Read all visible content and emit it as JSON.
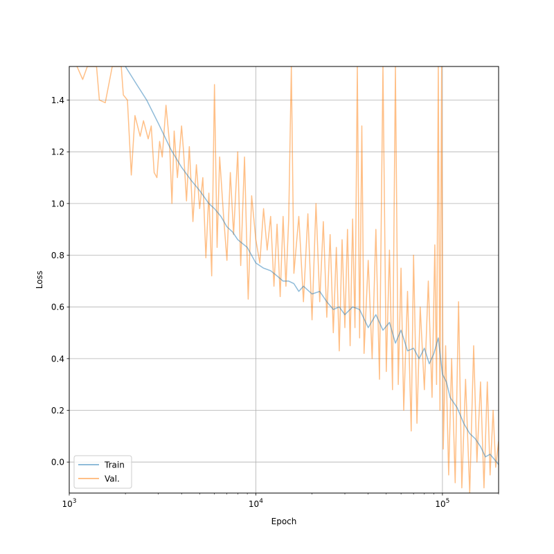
{
  "chart_data": {
    "type": "line",
    "xlabel": "Epoch",
    "ylabel": "Loss",
    "xscale": "log",
    "xlim": [
      1000,
      200000
    ],
    "ylim": [
      -0.12,
      1.53
    ],
    "grid": true,
    "legend_position": "lower-left",
    "x_ticks": [
      {
        "value": 1000,
        "base": "10",
        "exp": "3"
      },
      {
        "value": 10000,
        "base": "10",
        "exp": "4"
      },
      {
        "value": 100000,
        "base": "10",
        "exp": "5"
      }
    ],
    "y_ticks": [
      "0.0",
      "0.2",
      "0.4",
      "0.6",
      "0.8",
      "1.0",
      "1.2",
      "1.4"
    ],
    "series": [
      {
        "name": "Train",
        "color": "#1f77b4",
        "points": [
          [
            2000,
            1.53
          ],
          [
            2300,
            1.46
          ],
          [
            2600,
            1.4
          ],
          [
            3000,
            1.31
          ],
          [
            3500,
            1.21
          ],
          [
            4000,
            1.14
          ],
          [
            4500,
            1.09
          ],
          [
            5000,
            1.05
          ],
          [
            5600,
            1.0
          ],
          [
            6000,
            0.98
          ],
          [
            6500,
            0.95
          ],
          [
            7000,
            0.91
          ],
          [
            7500,
            0.89
          ],
          [
            8000,
            0.86
          ],
          [
            9000,
            0.83
          ],
          [
            10000,
            0.77
          ],
          [
            11000,
            0.75
          ],
          [
            12000,
            0.74
          ],
          [
            13000,
            0.72
          ],
          [
            14000,
            0.7
          ],
          [
            15000,
            0.7
          ],
          [
            16000,
            0.69
          ],
          [
            17000,
            0.66
          ],
          [
            18000,
            0.68
          ],
          [
            20000,
            0.65
          ],
          [
            22000,
            0.66
          ],
          [
            24000,
            0.62
          ],
          [
            26000,
            0.59
          ],
          [
            28000,
            0.6
          ],
          [
            30000,
            0.57
          ],
          [
            33000,
            0.6
          ],
          [
            36000,
            0.59
          ],
          [
            40000,
            0.52
          ],
          [
            44000,
            0.57
          ],
          [
            48000,
            0.51
          ],
          [
            52000,
            0.54
          ],
          [
            56000,
            0.46
          ],
          [
            60000,
            0.51
          ],
          [
            65000,
            0.43
          ],
          [
            70000,
            0.44
          ],
          [
            75000,
            0.4
          ],
          [
            80000,
            0.44
          ],
          [
            85000,
            0.38
          ],
          [
            90000,
            0.42
          ],
          [
            95000,
            0.48
          ],
          [
            100000,
            0.34
          ],
          [
            105000,
            0.31
          ],
          [
            110000,
            0.25
          ],
          [
            120000,
            0.21
          ],
          [
            130000,
            0.15
          ],
          [
            140000,
            0.11
          ],
          [
            150000,
            0.09
          ],
          [
            160000,
            0.06
          ],
          [
            170000,
            0.02
          ],
          [
            180000,
            0.03
          ],
          [
            190000,
            0.01
          ],
          [
            200000,
            -0.01
          ]
        ]
      },
      {
        "name": "Val.",
        "color": "#ff7f0e",
        "points": [
          [
            1100,
            1.53
          ],
          [
            1180,
            1.48
          ],
          [
            1250,
            1.53
          ],
          [
            1400,
            1.53
          ],
          [
            1450,
            1.4
          ],
          [
            1560,
            1.39
          ],
          [
            1700,
            1.53
          ],
          [
            1800,
            1.53
          ],
          [
            1900,
            1.53
          ],
          [
            1950,
            1.42
          ],
          [
            2050,
            1.4
          ],
          [
            2150,
            1.11
          ],
          [
            2250,
            1.34
          ],
          [
            2400,
            1.26
          ],
          [
            2500,
            1.32
          ],
          [
            2650,
            1.25
          ],
          [
            2750,
            1.3
          ],
          [
            2850,
            1.12
          ],
          [
            2950,
            1.1
          ],
          [
            3050,
            1.24
          ],
          [
            3150,
            1.18
          ],
          [
            3300,
            1.38
          ],
          [
            3450,
            1.23
          ],
          [
            3550,
            1.0
          ],
          [
            3650,
            1.28
          ],
          [
            3800,
            1.1
          ],
          [
            4000,
            1.3
          ],
          [
            4100,
            1.2
          ],
          [
            4250,
            1.01
          ],
          [
            4400,
            1.22
          ],
          [
            4600,
            0.93
          ],
          [
            4800,
            1.15
          ],
          [
            5000,
            0.98
          ],
          [
            5200,
            1.1
          ],
          [
            5400,
            0.79
          ],
          [
            5600,
            1.04
          ],
          [
            5800,
            0.72
          ],
          [
            6000,
            1.46
          ],
          [
            6200,
            0.83
          ],
          [
            6400,
            1.18
          ],
          [
            6700,
            0.96
          ],
          [
            7000,
            0.78
          ],
          [
            7300,
            1.12
          ],
          [
            7600,
            0.88
          ],
          [
            8000,
            1.2
          ],
          [
            8300,
            0.76
          ],
          [
            8700,
            1.18
          ],
          [
            9100,
            0.63
          ],
          [
            9500,
            1.03
          ],
          [
            10000,
            0.86
          ],
          [
            10500,
            0.77
          ],
          [
            11000,
            0.98
          ],
          [
            11500,
            0.82
          ],
          [
            12000,
            0.95
          ],
          [
            12500,
            0.68
          ],
          [
            13000,
            0.92
          ],
          [
            13500,
            0.64
          ],
          [
            14000,
            0.95
          ],
          [
            14500,
            0.68
          ],
          [
            15000,
            0.94
          ],
          [
            15500,
            1.53
          ],
          [
            16000,
            0.73
          ],
          [
            17000,
            0.95
          ],
          [
            18000,
            0.62
          ],
          [
            19000,
            0.96
          ],
          [
            20000,
            0.55
          ],
          [
            21000,
            1.0
          ],
          [
            22000,
            0.62
          ],
          [
            23000,
            0.93
          ],
          [
            24000,
            0.56
          ],
          [
            25000,
            0.88
          ],
          [
            26000,
            0.5
          ],
          [
            27000,
            0.83
          ],
          [
            28000,
            0.43
          ],
          [
            29000,
            0.86
          ],
          [
            30000,
            0.52
          ],
          [
            31000,
            0.9
          ],
          [
            32000,
            0.45
          ],
          [
            33000,
            0.94
          ],
          [
            34000,
            0.52
          ],
          [
            35000,
            1.53
          ],
          [
            36000,
            0.48
          ],
          [
            37000,
            1.3
          ],
          [
            38000,
            0.42
          ],
          [
            40000,
            0.78
          ],
          [
            42000,
            0.4
          ],
          [
            44000,
            0.9
          ],
          [
            46000,
            0.32
          ],
          [
            48000,
            1.53
          ],
          [
            50000,
            0.35
          ],
          [
            52000,
            0.82
          ],
          [
            54000,
            0.28
          ],
          [
            56000,
            1.53
          ],
          [
            58000,
            0.3
          ],
          [
            60000,
            0.75
          ],
          [
            62000,
            0.2
          ],
          [
            65000,
            0.66
          ],
          [
            68000,
            0.12
          ],
          [
            70000,
            0.8
          ],
          [
            73000,
            0.15
          ],
          [
            76000,
            0.6
          ],
          [
            80000,
            0.28
          ],
          [
            84000,
            0.7
          ],
          [
            88000,
            0.25
          ],
          [
            91000,
            0.84
          ],
          [
            93000,
            0.3
          ],
          [
            95000,
            1.53
          ],
          [
            97000,
            0.2
          ],
          [
            99000,
            1.53
          ],
          [
            101000,
            0.05
          ],
          [
            104000,
            0.45
          ],
          [
            108000,
            -0.05
          ],
          [
            112000,
            0.4
          ],
          [
            117000,
            -0.08
          ],
          [
            122000,
            0.62
          ],
          [
            127000,
            -0.1
          ],
          [
            133000,
            0.32
          ],
          [
            140000,
            -0.12
          ],
          [
            147000,
            0.45
          ],
          [
            153000,
            0.0
          ],
          [
            160000,
            0.31
          ],
          [
            167000,
            -0.1
          ],
          [
            174000,
            0.31
          ],
          [
            180000,
            -0.05
          ],
          [
            187000,
            0.2
          ],
          [
            193000,
            -0.02
          ],
          [
            200000,
            0.08
          ]
        ]
      }
    ]
  }
}
